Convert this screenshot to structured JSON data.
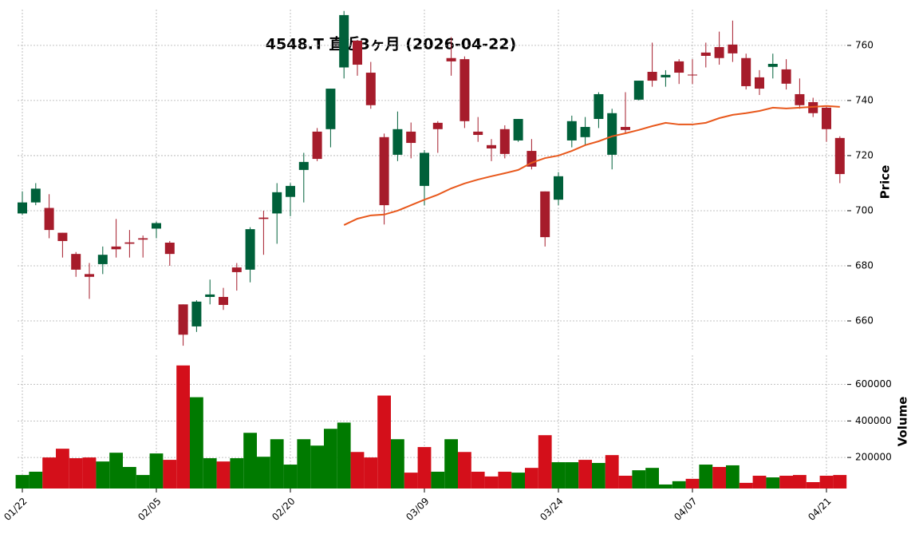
{
  "chart_data": {
    "type": "candlestick",
    "title": "4548.T 直近3ヶ月 (2026-04-22)",
    "categories": [
      "01/22",
      null,
      null,
      null,
      null,
      null,
      null,
      null,
      null,
      null,
      "02/05",
      null,
      null,
      null,
      null,
      null,
      null,
      null,
      null,
      null,
      "02/20",
      null,
      null,
      null,
      null,
      null,
      null,
      null,
      null,
      null,
      "03/09",
      null,
      null,
      null,
      null,
      null,
      null,
      null,
      null,
      null,
      "03/24",
      null,
      null,
      null,
      null,
      null,
      null,
      null,
      null,
      null,
      "04/07",
      null,
      null,
      null,
      null,
      null,
      null,
      null,
      null,
      null,
      "04/21",
      null
    ],
    "open": [
      699,
      703,
      701,
      692,
      684.3,
      677,
      680.6,
      687,
      688.5,
      690,
      693.5,
      688.4,
      666,
      658,
      668.7,
      668.7,
      679.4,
      678.6,
      697.5,
      699,
      705,
      714.8,
      728.7,
      729.6,
      752,
      761.7,
      750.1,
      726.7,
      720.3,
      728.7,
      709,
      731.9,
      755.4,
      755,
      728.7,
      723.8,
      729.6,
      725.5,
      721.7,
      707,
      704,
      725.5,
      726.7,
      733.3,
      720.3,
      730.4,
      740.3,
      750.4,
      748.4,
      754.2,
      749.4,
      757.4,
      759.4,
      760.3,
      755.4,
      748.4,
      752.2,
      751.3,
      742.3,
      739.4,
      737.4,
      726.4
    ],
    "high": [
      707,
      710,
      706,
      692,
      685,
      681,
      687,
      697,
      693,
      691,
      696,
      689,
      666,
      667.5,
      675,
      672,
      681,
      694,
      700,
      710,
      710,
      721,
      730,
      744.3,
      772.5,
      762,
      754,
      728,
      736,
      732,
      722,
      732.5,
      763,
      756,
      734,
      726,
      731,
      733.3,
      726,
      707,
      714,
      734.5,
      734,
      743,
      737,
      743,
      747.2,
      761,
      751,
      755,
      755,
      761,
      765,
      769,
      757,
      751,
      757,
      755,
      748,
      741,
      738,
      727
    ],
    "low": [
      698.5,
      702,
      690,
      683,
      676,
      668,
      677,
      683,
      683,
      683,
      690,
      680,
      651,
      656,
      666,
      664,
      671,
      674,
      684,
      688,
      698,
      703,
      718,
      723,
      748,
      749,
      737,
      695,
      718,
      719,
      702,
      721,
      749,
      730,
      725,
      718,
      719,
      725,
      715,
      687,
      702,
      723,
      724,
      730,
      715,
      728,
      740,
      745,
      745,
      746,
      746,
      752,
      753,
      754,
      744,
      742,
      748,
      744,
      737,
      734,
      725,
      710
    ],
    "close": [
      703,
      708,
      693,
      689,
      678.6,
      676,
      684,
      686,
      688,
      689.5,
      695.5,
      684.3,
      655,
      667,
      669.6,
      665.8,
      677.7,
      693.3,
      697,
      706.7,
      709,
      717.7,
      718.8,
      744.3,
      771,
      753,
      738.3,
      702,
      729.6,
      724.6,
      721,
      729.6,
      754.2,
      732.5,
      727.5,
      722.6,
      720.6,
      733.3,
      716,
      690.4,
      712.5,
      732.5,
      730.4,
      742.3,
      735.4,
      729.3,
      747.2,
      747.2,
      749.3,
      750.1,
      749.1,
      756.2,
      755.4,
      757.1,
      745.2,
      744.3,
      753.3,
      746.1,
      738.3,
      735.4,
      729.6,
      713.3
    ],
    "up_color": "#00603a",
    "down_color": "#a61c2b",
    "ylim": [
      649,
      773
    ],
    "yticks": [
      660,
      680,
      700,
      720,
      740,
      760
    ],
    "ylabel": "Price",
    "grid": true,
    "ma": {
      "color": "#e8581c",
      "values": [
        null,
        null,
        null,
        null,
        null,
        null,
        null,
        null,
        null,
        null,
        null,
        null,
        null,
        null,
        null,
        null,
        null,
        null,
        null,
        null,
        null,
        null,
        null,
        null,
        694.8,
        697.1,
        698.3,
        698.6,
        700,
        702,
        704,
        705.8,
        708.1,
        709.9,
        711.3,
        712.5,
        713.6,
        714.8,
        717.4,
        719.1,
        720,
        721.7,
        723.8,
        725.2,
        727,
        728.1,
        729.3,
        730.7,
        731.9,
        731.3,
        731.3,
        731.9,
        733.6,
        734.8,
        735.4,
        736.2,
        737.4,
        737.1,
        737.4,
        737.7,
        738,
        737.7
      ]
    },
    "volume": {
      "values": [
        104000,
        122000,
        200000,
        248000,
        196000,
        200000,
        178000,
        226000,
        148000,
        104000,
        222000,
        187000,
        704000,
        530000,
        196000,
        178000,
        196000,
        335000,
        204000,
        300000,
        161000,
        300000,
        265000,
        357000,
        391000,
        230000,
        200000,
        539000,
        300000,
        117000,
        257000,
        122000,
        300000,
        230000,
        122000,
        96000,
        122000,
        117000,
        143000,
        322000,
        174000,
        174000,
        187000,
        170000,
        213000,
        100000,
        130000,
        143000,
        52000,
        70000,
        83000,
        161000,
        148000,
        157000,
        61000,
        100000,
        91000,
        100000,
        104000,
        65000,
        100000,
        104000
      ],
      "up_color": "#007a00",
      "down_color": "#d40f1a",
      "ylim": [
        30000,
        760000
      ],
      "yticks": [
        200000,
        400000,
        600000
      ],
      "ylabel": "Volume"
    }
  }
}
